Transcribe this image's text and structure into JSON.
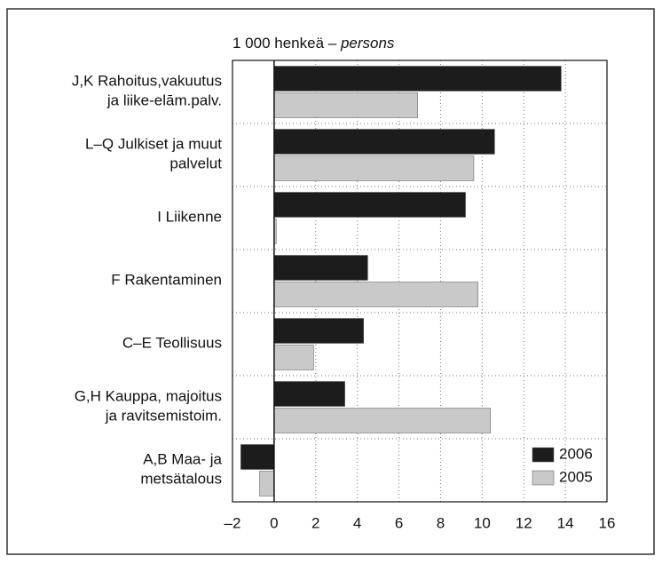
{
  "chart_data": {
    "type": "bar",
    "orientation": "horizontal",
    "title": "1 000 henkeä –",
    "title_italic": "persons",
    "categories": [
      "J,K Rahoitus,vakuutus\nja liike-elām.palv.",
      "L–Q Julkiset ja muut\npalvelut",
      "I Liikenne",
      "F Rakentaminen",
      "C–E Teollisuus",
      "G,H Kauppa, majoitus\nja ravitsemistoim.",
      "A,B Maa- ja\nmetsätalous"
    ],
    "series": [
      {
        "name": "2006",
        "color": "#1c1c1c",
        "values": [
          13.8,
          10.6,
          9.2,
          4.5,
          4.3,
          3.4,
          -1.6
        ]
      },
      {
        "name": "2005",
        "color": "#c9c9c9",
        "values": [
          6.9,
          9.6,
          0.1,
          9.8,
          1.9,
          10.4,
          -0.7
        ]
      }
    ],
    "xlim": [
      -2,
      16
    ],
    "xticks": [
      {
        "value": -2,
        "label": "–2"
      },
      0,
      2,
      4,
      6,
      8,
      10,
      12,
      14,
      16
    ],
    "grid": true,
    "legend": "lower right"
  }
}
